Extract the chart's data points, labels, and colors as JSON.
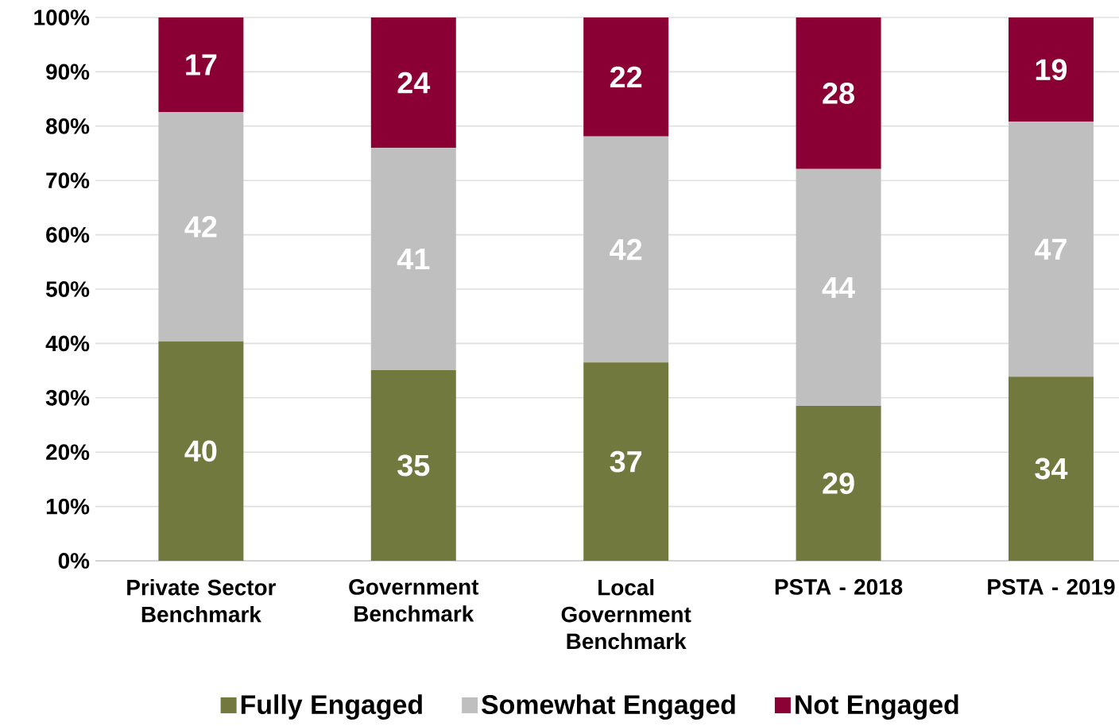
{
  "chart_data": {
    "type": "bar",
    "stacked": true,
    "categories": [
      "Private Sector Benchmark",
      "Government Benchmark",
      "Local Government Benchmark",
      "PSTA - 2018",
      "PSTA - 2019"
    ],
    "series": [
      {
        "name": "Fully Engaged",
        "color": "#72793f",
        "values": [
          40.4,
          35.1,
          36.5,
          28.5,
          33.9
        ],
        "value_labels": [
          "40",
          "35",
          "37",
          "29",
          "34"
        ]
      },
      {
        "name": "Somewhat Engaged",
        "color": "#bfbfbf",
        "values": [
          42.2,
          40.9,
          41.6,
          43.6,
          46.9
        ],
        "value_labels": [
          "42",
          "41",
          "42",
          "44",
          "47"
        ]
      },
      {
        "name": "Not Engaged",
        "color": "#8b0034",
        "values": [
          17.4,
          24.0,
          21.9,
          27.9,
          19.2
        ],
        "value_labels": [
          "17",
          "24",
          "22",
          "28",
          "19"
        ]
      }
    ],
    "ylim": [
      0,
      100
    ],
    "yticks": [
      {
        "value": 0,
        "label": "0%"
      },
      {
        "value": 10,
        "label": "10%"
      },
      {
        "value": 20,
        "label": "20%"
      },
      {
        "value": 30,
        "label": "30%"
      },
      {
        "value": 40,
        "label": "40%"
      },
      {
        "value": 50,
        "label": "50%"
      },
      {
        "value": 60,
        "label": "60%"
      },
      {
        "value": 70,
        "label": "70%"
      },
      {
        "value": 80,
        "label": "80%"
      },
      {
        "value": 90,
        "label": "90%"
      },
      {
        "value": 100,
        "label": "100%"
      }
    ],
    "grid": "y",
    "legend": "bottom"
  }
}
